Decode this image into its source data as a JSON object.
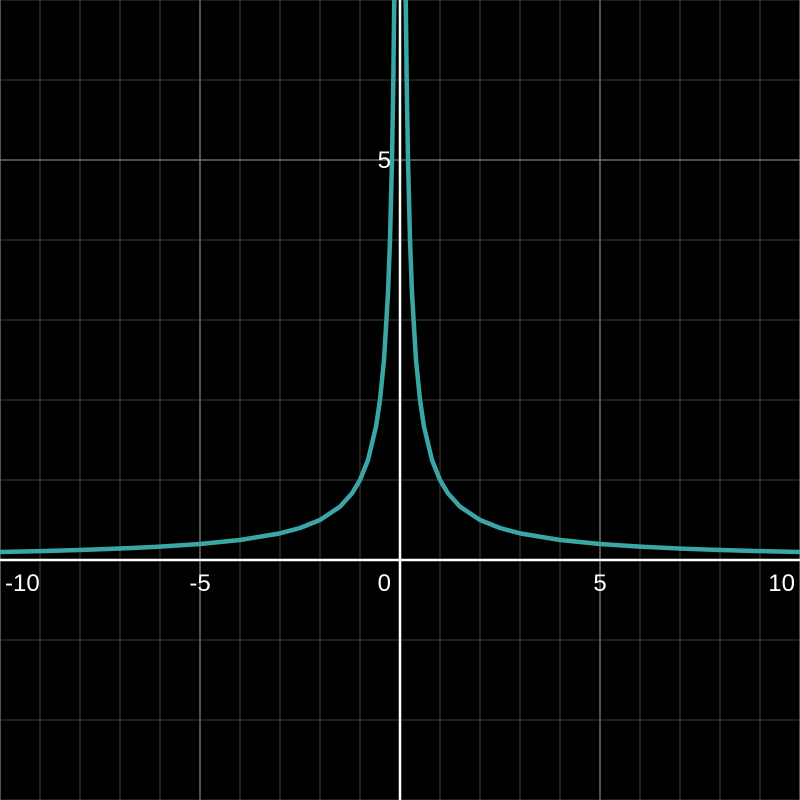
{
  "chart_data": {
    "type": "line",
    "title": "",
    "xlabel": "",
    "ylabel": "",
    "xlim": [
      -10,
      10
    ],
    "ylim": [
      -3,
      7
    ],
    "grid": true,
    "x_ticks": [
      {
        "value": -10,
        "label": "-10"
      },
      {
        "value": -5,
        "label": "-5"
      },
      {
        "value": 0,
        "label": "0"
      },
      {
        "value": 5,
        "label": "5"
      },
      {
        "value": 10,
        "label": "10"
      }
    ],
    "y_ticks": [
      {
        "value": 5,
        "label": "5"
      }
    ],
    "series": [
      {
        "color": "#3aa6a6",
        "points": [
          [
            -10,
            0.1
          ],
          [
            -9,
            0.111
          ],
          [
            -8,
            0.125
          ],
          [
            -7,
            0.143
          ],
          [
            -6,
            0.167
          ],
          [
            -5,
            0.2
          ],
          [
            -4,
            0.25
          ],
          [
            -3,
            0.333
          ],
          [
            -2.5,
            0.4
          ],
          [
            -2,
            0.5
          ],
          [
            -1.5,
            0.667
          ],
          [
            -1.2,
            0.833
          ],
          [
            -1,
            1.0
          ],
          [
            -0.8,
            1.25
          ],
          [
            -0.6,
            1.667
          ],
          [
            -0.5,
            2.0
          ],
          [
            -0.4,
            2.5
          ],
          [
            -0.3,
            3.333
          ],
          [
            -0.25,
            4.0
          ],
          [
            -0.2,
            5.0
          ],
          [
            -0.17,
            5.88
          ],
          [
            -0.14,
            7.14
          ],
          [
            0.14,
            7.14
          ],
          [
            0.17,
            5.88
          ],
          [
            0.2,
            5.0
          ],
          [
            0.25,
            4.0
          ],
          [
            0.3,
            3.333
          ],
          [
            0.4,
            2.5
          ],
          [
            0.5,
            2.0
          ],
          [
            0.6,
            1.667
          ],
          [
            0.8,
            1.25
          ],
          [
            1,
            1.0
          ],
          [
            1.2,
            0.833
          ],
          [
            1.5,
            0.667
          ],
          [
            2,
            0.5
          ],
          [
            2.5,
            0.4
          ],
          [
            3,
            0.333
          ],
          [
            4,
            0.25
          ],
          [
            5,
            0.2
          ],
          [
            6,
            0.167
          ],
          [
            7,
            0.143
          ],
          [
            8,
            0.125
          ],
          [
            9,
            0.111
          ],
          [
            10,
            0.1
          ]
        ]
      }
    ]
  },
  "colors": {
    "background": "#000000",
    "grid": "#5a5a5a",
    "axis": "#ffffff",
    "curve": "#3aa6a6",
    "text": "#ffffff"
  }
}
